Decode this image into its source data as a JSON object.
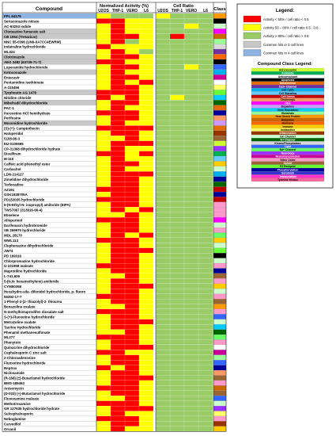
{
  "chart_data": {
    "type": "heatmap",
    "header": {
      "compound": "Compound",
      "group_activity": "Normalized Activity (%)",
      "group_ratio": "Cell Ratio",
      "class": "Class"
    },
    "columns": [
      "U2OS",
      "THP-1",
      "VERO",
      "L6",
      "U2OS",
      "THP-1",
      "VERO",
      "L6"
    ],
    "rows": [
      "FPL 64176",
      "Sertaconazole nitrate",
      "AC-93253 iodide",
      "Clomastine fumarate salt",
      "CB 1954 (Tretazicar)",
      "NNC 55-0396 (UNII-0A7CC4EWRM)",
      "Indatraline hydrochloride",
      "ML324",
      "Clotrimazole",
      "AEG 3482 (63735-71-7)",
      "Loperamide hydrochloride",
      "Ketoconazole",
      "Entecavir",
      "Pentamidine isethionate",
      "A-315456",
      "Tyrphostin AG 1478",
      "Nitidine chloride",
      "Mibefradil dihydrochloride",
      "PAC-1",
      "Paroxetine HCl hemihydrate",
      "Perifosine",
      "Moxonidine hydrochloride",
      "(S)-(+)- Camptothecin",
      "Haloperidol",
      "5108-96-3",
      "EU-0100695",
      "CP-31398 dihydrochloride hydrate",
      "Disulfiram",
      "M-110",
      "Caffeic acid phenethyl ester",
      "Carbachol",
      "LDN-214117",
      "Zimelidine dihydrochloride",
      "Terfenadine",
      "AZ191",
      "GSK1838705A",
      "PD153035 hydrochloride",
      "5-(N-Ethyl-N- isopropyl) amiloride (EIPA)",
      "TWS7067 (313916-66-4)",
      "Ebselene",
      "Allopurinol",
      "Darifenacin hydrobromide",
      "SB 269970 hydrochloride",
      "MDL 28170",
      "WWL113",
      "Fluphenazine dihydrochloride",
      "JW74",
      "PD 169316",
      "Chlorpromazine hydrochloride",
      "U-101958 maleate",
      "Maprotiline hydrochloride",
      "L-741,626",
      "5-(N,N- hexamethylene) amiloride",
      "CYM50358",
      "Hexahydro-sila- difenidol hydrochloride, p- fluoro",
      "56392-17-7",
      "1-Phenyl-3-(2- thiazolyl)-2- thiourea",
      "Benazoline oxalate",
      "N-methylhistaprodifen dioxalate salt",
      "S-(+)-Fluoxetine hydrochloride",
      "Metrazoline oxalate",
      "Tacrine Hydrochloride",
      "Phenamil methanesulfonate",
      "ML277",
      "Phenytoin",
      "Quinacrine dihydrochloride",
      "Cephalosporin C zinc salt",
      "2-Chloroadenosine",
      "Fluoxetine hydrochloride",
      "RepSox",
      "Niclosamide",
      "(R-168) (±)-Butaclamol hydrochloride",
      "BMS-189453",
      "Anisomycin",
      "(D-033) (+)-Butaclamol hydrochloride",
      "Fluvoxamine maleate",
      "Methotrexamine",
      "GR 127935 hydrochloride hydrate",
      "Sulcephalosporin",
      "Neboglamine",
      "Carvedilol",
      "Orvanil"
    ],
    "row_highlight": [
      0,
      2,
      2,
      1,
      1,
      2,
      2,
      2,
      1,
      1,
      2,
      1,
      2,
      2,
      2,
      1,
      2,
      1,
      2,
      2,
      2,
      1,
      2,
      2,
      2,
      2,
      2,
      2,
      2,
      2,
      2,
      2,
      2,
      2,
      2,
      2,
      2,
      2,
      2,
      2,
      2,
      2,
      2,
      2,
      2,
      2,
      2,
      2,
      2,
      2,
      2,
      2,
      2,
      2,
      2,
      2,
      2,
      2,
      2,
      2,
      2,
      2,
      2,
      2,
      2,
      2,
      2,
      2,
      2,
      2,
      2,
      2,
      2,
      2,
      2,
      2,
      2,
      2,
      2,
      2,
      2,
      2
    ],
    "activity": [
      [
        1,
        2,
        2,
        2
      ],
      [
        0,
        0,
        1,
        1
      ],
      [
        1,
        0,
        1,
        1
      ],
      [
        1,
        0,
        1,
        1
      ],
      [
        1,
        0,
        0,
        1
      ],
      [
        1,
        0,
        2,
        1
      ],
      [
        0,
        1,
        1,
        1
      ],
      [
        1,
        0,
        1,
        2
      ],
      [
        1,
        0,
        0,
        1
      ],
      [
        0,
        0,
        1,
        1
      ],
      [
        1,
        0,
        0,
        1
      ],
      [
        1,
        0,
        1,
        1
      ],
      [
        1,
        0,
        0,
        1
      ],
      [
        1,
        0,
        1,
        0
      ],
      [
        1,
        0,
        0,
        1
      ],
      [
        0,
        0,
        0,
        1
      ],
      [
        0,
        1,
        0,
        1
      ],
      [
        1,
        0,
        0,
        1
      ],
      [
        1,
        0,
        1,
        1
      ],
      [
        0,
        0,
        0,
        1
      ],
      [
        1,
        0,
        0,
        1
      ],
      [
        1,
        0,
        1,
        1
      ],
      [
        0,
        0,
        0,
        0
      ],
      [
        1,
        0,
        0,
        1
      ],
      [
        1,
        1,
        0,
        1
      ],
      [
        1,
        0,
        0,
        0
      ],
      [
        1,
        0,
        1,
        1
      ],
      [
        0,
        0,
        1,
        0
      ],
      [
        1,
        0,
        1,
        1
      ],
      [
        1,
        0,
        0,
        1
      ],
      [
        1,
        0,
        1,
        1
      ],
      [
        1,
        0,
        0,
        0
      ],
      [
        1,
        0,
        0,
        1
      ],
      [
        1,
        0,
        0,
        1
      ],
      [
        0,
        0,
        0,
        1
      ],
      [
        1,
        0,
        0,
        1
      ],
      [
        0,
        0,
        0,
        1
      ],
      [
        1,
        0,
        0,
        1
      ],
      [
        1,
        0,
        1,
        0
      ],
      [
        1,
        1,
        0,
        1
      ],
      [
        0,
        0,
        0,
        1
      ],
      [
        1,
        0,
        0,
        1
      ],
      [
        1,
        0,
        0,
        1
      ],
      [
        1,
        0,
        1,
        0
      ],
      [
        0,
        0,
        0,
        1
      ],
      [
        1,
        0,
        0,
        1
      ],
      [
        1,
        0,
        0,
        0
      ],
      [
        1,
        0,
        0,
        1
      ],
      [
        1,
        0,
        0,
        1
      ],
      [
        0,
        0,
        0,
        1
      ],
      [
        1,
        0,
        0,
        1
      ],
      [
        1,
        1,
        0,
        1
      ],
      [
        1,
        0,
        0,
        1
      ],
      [
        1,
        0,
        0,
        0
      ],
      [
        1,
        0,
        0,
        1
      ],
      [
        0,
        0,
        0,
        1
      ],
      [
        1,
        0,
        0,
        1
      ],
      [
        1,
        1,
        0,
        1
      ],
      [
        0,
        0,
        0,
        1
      ],
      [
        1,
        0,
        0,
        1
      ],
      [
        1,
        0,
        0,
        0
      ],
      [
        1,
        0,
        0,
        1
      ],
      [
        1,
        1,
        0,
        1
      ],
      [
        0,
        0,
        0,
        1
      ],
      [
        1,
        0,
        0,
        1
      ],
      [
        1,
        0,
        0,
        0
      ],
      [
        0,
        0,
        1,
        1
      ],
      [
        1,
        0,
        0,
        1
      ],
      [
        1,
        0,
        0,
        1
      ],
      [
        0,
        1,
        0,
        1
      ],
      [
        1,
        0,
        0,
        1
      ],
      [
        1,
        0,
        0,
        0
      ],
      [
        1,
        0,
        0,
        1
      ],
      [
        0,
        0,
        0,
        1
      ],
      [
        1,
        0,
        0,
        1
      ],
      [
        1,
        1,
        0,
        1
      ],
      [
        0,
        0,
        0,
        1
      ],
      [
        1,
        0,
        0,
        0
      ],
      [
        1,
        0,
        1,
        1
      ],
      [
        0,
        0,
        0,
        1
      ],
      [
        1,
        0,
        0,
        1
      ],
      [
        1,
        0,
        1,
        1
      ]
    ],
    "ratio": [
      [
        1,
        2,
        2,
        2
      ],
      [
        2,
        2,
        2,
        2
      ],
      [
        2,
        2,
        1,
        2
      ],
      [
        2,
        2,
        2,
        2
      ],
      [
        2,
        0,
        2,
        2
      ],
      [
        2,
        2,
        2,
        2
      ],
      [
        2,
        2,
        2,
        2
      ],
      [
        2,
        2,
        2,
        2
      ],
      [
        2,
        2,
        2,
        2
      ],
      [
        2,
        2,
        2,
        2
      ],
      [
        2,
        2,
        1,
        2
      ],
      [
        2,
        2,
        2,
        2
      ],
      [
        2,
        2,
        2,
        2
      ],
      [
        2,
        2,
        2,
        2
      ],
      [
        2,
        2,
        2,
        2
      ],
      [
        2,
        2,
        2,
        2
      ],
      [
        2,
        1,
        2,
        2
      ],
      [
        2,
        2,
        2,
        2
      ],
      [
        2,
        2,
        2,
        2
      ],
      [
        2,
        2,
        2,
        2
      ],
      [
        2,
        2,
        2,
        2
      ],
      [
        2,
        2,
        2,
        2
      ],
      [
        2,
        2,
        2,
        2
      ],
      [
        2,
        2,
        2,
        2
      ],
      [
        2,
        2,
        2,
        2
      ],
      [
        2,
        2,
        2,
        2
      ],
      [
        2,
        2,
        2,
        2
      ],
      [
        2,
        2,
        2,
        2
      ],
      [
        2,
        2,
        2,
        2
      ],
      [
        2,
        2,
        2,
        2
      ],
      [
        2,
        2,
        2,
        2
      ],
      [
        2,
        2,
        2,
        2
      ],
      [
        2,
        2,
        2,
        2
      ],
      [
        2,
        2,
        2,
        2
      ],
      [
        2,
        2,
        2,
        2
      ],
      [
        2,
        2,
        2,
        2
      ],
      [
        2,
        2,
        2,
        2
      ],
      [
        2,
        2,
        2,
        2
      ],
      [
        2,
        2,
        2,
        2
      ],
      [
        2,
        2,
        2,
        2
      ],
      [
        2,
        2,
        2,
        2
      ],
      [
        2,
        2,
        2,
        2
      ],
      [
        2,
        2,
        2,
        2
      ],
      [
        2,
        2,
        2,
        2
      ],
      [
        2,
        2,
        2,
        2
      ],
      [
        2,
        2,
        2,
        2
      ],
      [
        2,
        2,
        2,
        2
      ],
      [
        2,
        2,
        2,
        2
      ],
      [
        2,
        2,
        2,
        2
      ],
      [
        2,
        2,
        2,
        2
      ],
      [
        2,
        2,
        2,
        2
      ],
      [
        2,
        2,
        2,
        2
      ],
      [
        2,
        2,
        2,
        2
      ],
      [
        2,
        2,
        2,
        2
      ],
      [
        2,
        2,
        2,
        2
      ],
      [
        2,
        2,
        2,
        2
      ],
      [
        2,
        2,
        2,
        2
      ],
      [
        2,
        2,
        2,
        2
      ],
      [
        2,
        2,
        2,
        2
      ],
      [
        2,
        2,
        2,
        2
      ],
      [
        2,
        2,
        2,
        2
      ],
      [
        2,
        2,
        2,
        2
      ],
      [
        2,
        2,
        2,
        2
      ],
      [
        2,
        2,
        2,
        2
      ],
      [
        2,
        2,
        2,
        2
      ],
      [
        2,
        2,
        2,
        2
      ],
      [
        2,
        2,
        2,
        2
      ],
      [
        2,
        2,
        2,
        2
      ],
      [
        2,
        2,
        2,
        2
      ],
      [
        2,
        2,
        2,
        2
      ],
      [
        2,
        2,
        2,
        2
      ],
      [
        2,
        2,
        2,
        2
      ],
      [
        2,
        2,
        2,
        2
      ],
      [
        2,
        2,
        2,
        2
      ],
      [
        2,
        2,
        2,
        2
      ],
      [
        2,
        2,
        2,
        2
      ],
      [
        2,
        2,
        2,
        2
      ],
      [
        2,
        2,
        2,
        2
      ],
      [
        2,
        2,
        2,
        2
      ],
      [
        2,
        2,
        2,
        2
      ],
      [
        2,
        2,
        2,
        2
      ],
      [
        2,
        2,
        2,
        2
      ]
    ],
    "row_class": [
      14,
      3,
      20,
      10,
      15,
      13,
      22,
      5,
      16,
      3,
      23,
      6,
      26,
      2,
      18,
      29,
      12,
      21,
      4,
      30,
      9,
      11,
      4,
      19,
      28,
      0,
      25,
      1,
      7,
      17,
      20,
      6,
      30,
      21,
      8,
      30,
      8,
      27,
      27,
      27,
      10,
      20,
      27,
      24,
      17,
      20,
      29,
      3,
      20,
      27,
      30,
      28,
      27,
      17,
      20,
      27,
      28,
      14,
      27,
      23,
      20,
      12,
      21,
      24,
      27,
      2,
      26,
      13,
      23,
      30,
      9,
      28,
      27,
      15,
      28,
      23,
      20,
      25,
      18,
      27,
      19,
      17
    ],
    "value_scale": [
      {
        "label": "Activity < 50% / cell ratio < 0.5",
        "color": "#ff0000"
      },
      {
        "label": "Activity 50 – 80% / cell ratio 0.5 - 0.8",
        "color": "#ffff00"
      },
      {
        "label": "Activity > 80% / cell ratio > 0.8",
        "color": "#99cc66"
      }
    ],
    "highlight_scale": [
      {
        "label": "Common hits in 3 cell lines",
        "color": "#c8c8c8"
      },
      {
        "label": "Common hits in 4 cell lines",
        "color": "#8db3e2"
      }
    ],
    "legend_title": "Legend:",
    "class_legend_title": "Compound Class Legend:",
    "classes": [
      {
        "name": "Adrenoceptor",
        "color": "#ccff33"
      },
      {
        "name": "Antibiotic",
        "color": "#00b050"
      },
      {
        "name": "Anticonvulsant",
        "color": "#ffffff"
      },
      {
        "name": "Apoptosis",
        "color": "#000000"
      },
      {
        "name": "Biochemical",
        "color": "#e26b0a"
      },
      {
        "name": "Ca2+ Channel",
        "color": "#7030a0"
      },
      {
        "name": "Cell Cycle",
        "color": "#00b0f0"
      },
      {
        "name": "Cell Signaling",
        "color": "#66ccff"
      },
      {
        "name": "Cell Stress",
        "color": "#c00000"
      },
      {
        "name": "Cholinergic",
        "color": "#ff9966"
      },
      {
        "name": "DNA",
        "color": "#ff00ff"
      },
      {
        "name": "Dopamine",
        "color": "#cc99ff"
      },
      {
        "name": "Gene Regulation",
        "color": "#00ccff"
      },
      {
        "name": "Glutamate",
        "color": "#99ff99"
      },
      {
        "name": "Heat Shock Protein",
        "color": "#ff9900"
      },
      {
        "name": "Histamine",
        "color": "#cc6600"
      },
      {
        "name": "Hormone",
        "color": "#ff6600"
      },
      {
        "name": "Immune",
        "color": "#ffcc00"
      },
      {
        "name": "Imidazoline",
        "color": "#ffff66"
      },
      {
        "name": "Inflammation",
        "color": "#993300"
      },
      {
        "name": "Ion Channel",
        "color": "#ccffcc"
      },
      {
        "name": "K+ Channel",
        "color": "#006600"
      },
      {
        "name": "Kinase/Phosphatase",
        "color": "#d9d9d9"
      },
      {
        "name": "Lipid",
        "color": "#3366ff"
      },
      {
        "name": "Na+ Channel",
        "color": "#66ff66"
      },
      {
        "name": "Neurology",
        "color": "#9933ff"
      },
      {
        "name": "Neurotransmission",
        "color": "#cc0099"
      },
      {
        "name": "Nitric Oxide",
        "color": "#ff99cc"
      },
      {
        "name": "Opioid",
        "color": "#996633"
      },
      {
        "name": "P2 Receptor",
        "color": "#66ff33"
      },
      {
        "name": "Phosphorylation",
        "color": "#000099"
      },
      {
        "name": "Serotonin",
        "color": "#3333cc"
      },
      {
        "name": "Transcription",
        "color": "#ff33cc"
      },
      {
        "name": "Tyrosine Kinase",
        "color": "#ff6699"
      }
    ],
    "row_highlight_colors": [
      "#8db3e2",
      "#c8c8c8",
      "#ffffff"
    ]
  }
}
